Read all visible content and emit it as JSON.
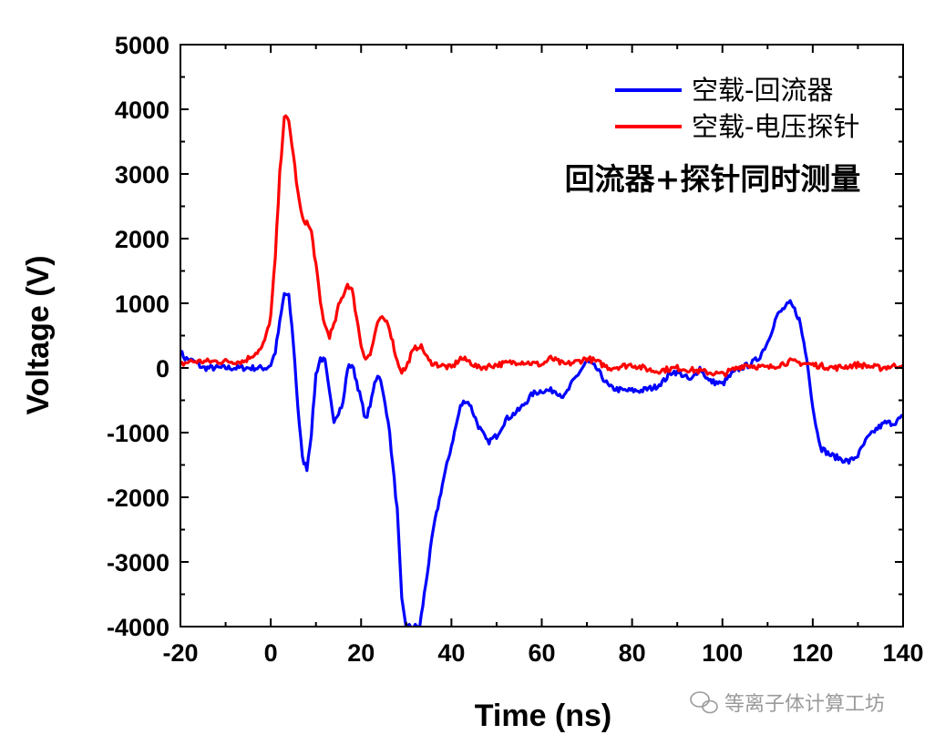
{
  "chart_data": {
    "type": "line",
    "xlabel": "Time (ns)",
    "ylabel": "Voltage (V)",
    "xlim": [
      -20,
      140
    ],
    "ylim": [
      -4000,
      5000
    ],
    "x_ticks": [
      "-20",
      "0",
      "20",
      "40",
      "60",
      "80",
      "100",
      "120",
      "140"
    ],
    "y_ticks": [
      "5000",
      "4000",
      "3000",
      "2000",
      "1000",
      "0",
      "-1000",
      "-2000",
      "-3000",
      "-4000"
    ],
    "legend_position": "top-right",
    "annotation": "回流器+探针同时测量",
    "series": [
      {
        "name": "空载-回流器",
        "color": "#0000ff",
        "points": [
          [
            -20,
            250
          ],
          [
            -19,
            150
          ],
          [
            -17,
            100
          ],
          [
            -15,
            0
          ],
          [
            -12,
            0
          ],
          [
            -8,
            0
          ],
          [
            -4,
            0
          ],
          [
            -1,
            0
          ],
          [
            0,
            50
          ],
          [
            1,
            250
          ],
          [
            2,
            700
          ],
          [
            3,
            1150
          ],
          [
            4,
            1100
          ],
          [
            5,
            400
          ],
          [
            6,
            -600
          ],
          [
            7,
            -1400
          ],
          [
            8,
            -1550
          ],
          [
            9,
            -1000
          ],
          [
            10,
            -100
          ],
          [
            11,
            150
          ],
          [
            12,
            100
          ],
          [
            13,
            -400
          ],
          [
            14,
            -800
          ],
          [
            16,
            -550
          ],
          [
            17,
            0
          ],
          [
            18,
            50
          ],
          [
            19,
            -200
          ],
          [
            21,
            -800
          ],
          [
            22,
            -600
          ],
          [
            23,
            -200
          ],
          [
            24,
            -100
          ],
          [
            26,
            -800
          ],
          [
            28,
            -2200
          ],
          [
            29,
            -3600
          ],
          [
            30,
            -4000
          ],
          [
            33,
            -4000
          ],
          [
            34,
            -3500
          ],
          [
            36,
            -2500
          ],
          [
            38,
            -1800
          ],
          [
            40,
            -1200
          ],
          [
            42,
            -600
          ],
          [
            43,
            -500
          ],
          [
            44,
            -550
          ],
          [
            46,
            -900
          ],
          [
            48,
            -1150
          ],
          [
            50,
            -1050
          ],
          [
            52,
            -800
          ],
          [
            55,
            -650
          ],
          [
            58,
            -400
          ],
          [
            60,
            -350
          ],
          [
            63,
            -350
          ],
          [
            65,
            -450
          ],
          [
            67,
            -200
          ],
          [
            70,
            100
          ],
          [
            72,
            0
          ],
          [
            74,
            -200
          ],
          [
            75,
            -300
          ],
          [
            78,
            -350
          ],
          [
            80,
            -350
          ],
          [
            82,
            -350
          ],
          [
            85,
            -300
          ],
          [
            87,
            -200
          ],
          [
            89,
            -50
          ],
          [
            91,
            -100
          ],
          [
            93,
            -200
          ],
          [
            95,
            0
          ],
          [
            97,
            -200
          ],
          [
            100,
            -250
          ],
          [
            102,
            -100
          ],
          [
            104,
            0
          ],
          [
            106,
            50
          ],
          [
            108,
            150
          ],
          [
            110,
            400
          ],
          [
            112,
            800
          ],
          [
            114,
            950
          ],
          [
            115,
            1000
          ],
          [
            116,
            900
          ],
          [
            117,
            750
          ],
          [
            118,
            400
          ],
          [
            119,
            0
          ],
          [
            120,
            -600
          ],
          [
            121,
            -1000
          ],
          [
            122,
            -1250
          ],
          [
            124,
            -1350
          ],
          [
            126,
            -1400
          ],
          [
            128,
            -1450
          ],
          [
            130,
            -1350
          ],
          [
            132,
            -1100
          ],
          [
            134,
            -950
          ],
          [
            136,
            -850
          ],
          [
            138,
            -850
          ],
          [
            140,
            -750
          ]
        ]
      },
      {
        "name": "空载-电压探针",
        "color": "#ff0000",
        "points": [
          [
            -20,
            50
          ],
          [
            -18,
            100
          ],
          [
            -15,
            100
          ],
          [
            -10,
            100
          ],
          [
            -6,
            100
          ],
          [
            -4,
            200
          ],
          [
            -2,
            300
          ],
          [
            -1,
            500
          ],
          [
            0,
            800
          ],
          [
            1,
            1700
          ],
          [
            2,
            3000
          ],
          [
            3,
            3900
          ],
          [
            4,
            3800
          ],
          [
            5,
            3300
          ],
          [
            6,
            2700
          ],
          [
            7,
            2300
          ],
          [
            8,
            2250
          ],
          [
            9,
            2100
          ],
          [
            10,
            1600
          ],
          [
            11,
            1000
          ],
          [
            12,
            650
          ],
          [
            13,
            500
          ],
          [
            14,
            650
          ],
          [
            15,
            950
          ],
          [
            17,
            1300
          ],
          [
            18,
            1200
          ],
          [
            19,
            800
          ],
          [
            20,
            350
          ],
          [
            21,
            150
          ],
          [
            22,
            200
          ],
          [
            23,
            500
          ],
          [
            24,
            750
          ],
          [
            25,
            750
          ],
          [
            26,
            700
          ],
          [
            27,
            400
          ],
          [
            28,
            100
          ],
          [
            29,
            -50
          ],
          [
            30,
            0
          ],
          [
            31,
            200
          ],
          [
            32,
            300
          ],
          [
            33,
            350
          ],
          [
            34,
            250
          ],
          [
            35,
            100
          ],
          [
            37,
            50
          ],
          [
            40,
            0
          ],
          [
            42,
            150
          ],
          [
            44,
            100
          ],
          [
            46,
            0
          ],
          [
            50,
            50
          ],
          [
            55,
            100
          ],
          [
            60,
            50
          ],
          [
            62,
            150
          ],
          [
            65,
            50
          ],
          [
            68,
            100
          ],
          [
            70,
            150
          ],
          [
            72,
            100
          ],
          [
            75,
            0
          ],
          [
            80,
            50
          ],
          [
            85,
            -50
          ],
          [
            90,
            0
          ],
          [
            95,
            -50
          ],
          [
            100,
            -100
          ],
          [
            105,
            50
          ],
          [
            110,
            0
          ],
          [
            115,
            100
          ],
          [
            120,
            50
          ],
          [
            125,
            0
          ],
          [
            130,
            50
          ],
          [
            135,
            0
          ],
          [
            140,
            50
          ]
        ]
      }
    ]
  },
  "watermark": {
    "icon": "wechat-icon",
    "text": "等离子体计算工坊"
  }
}
